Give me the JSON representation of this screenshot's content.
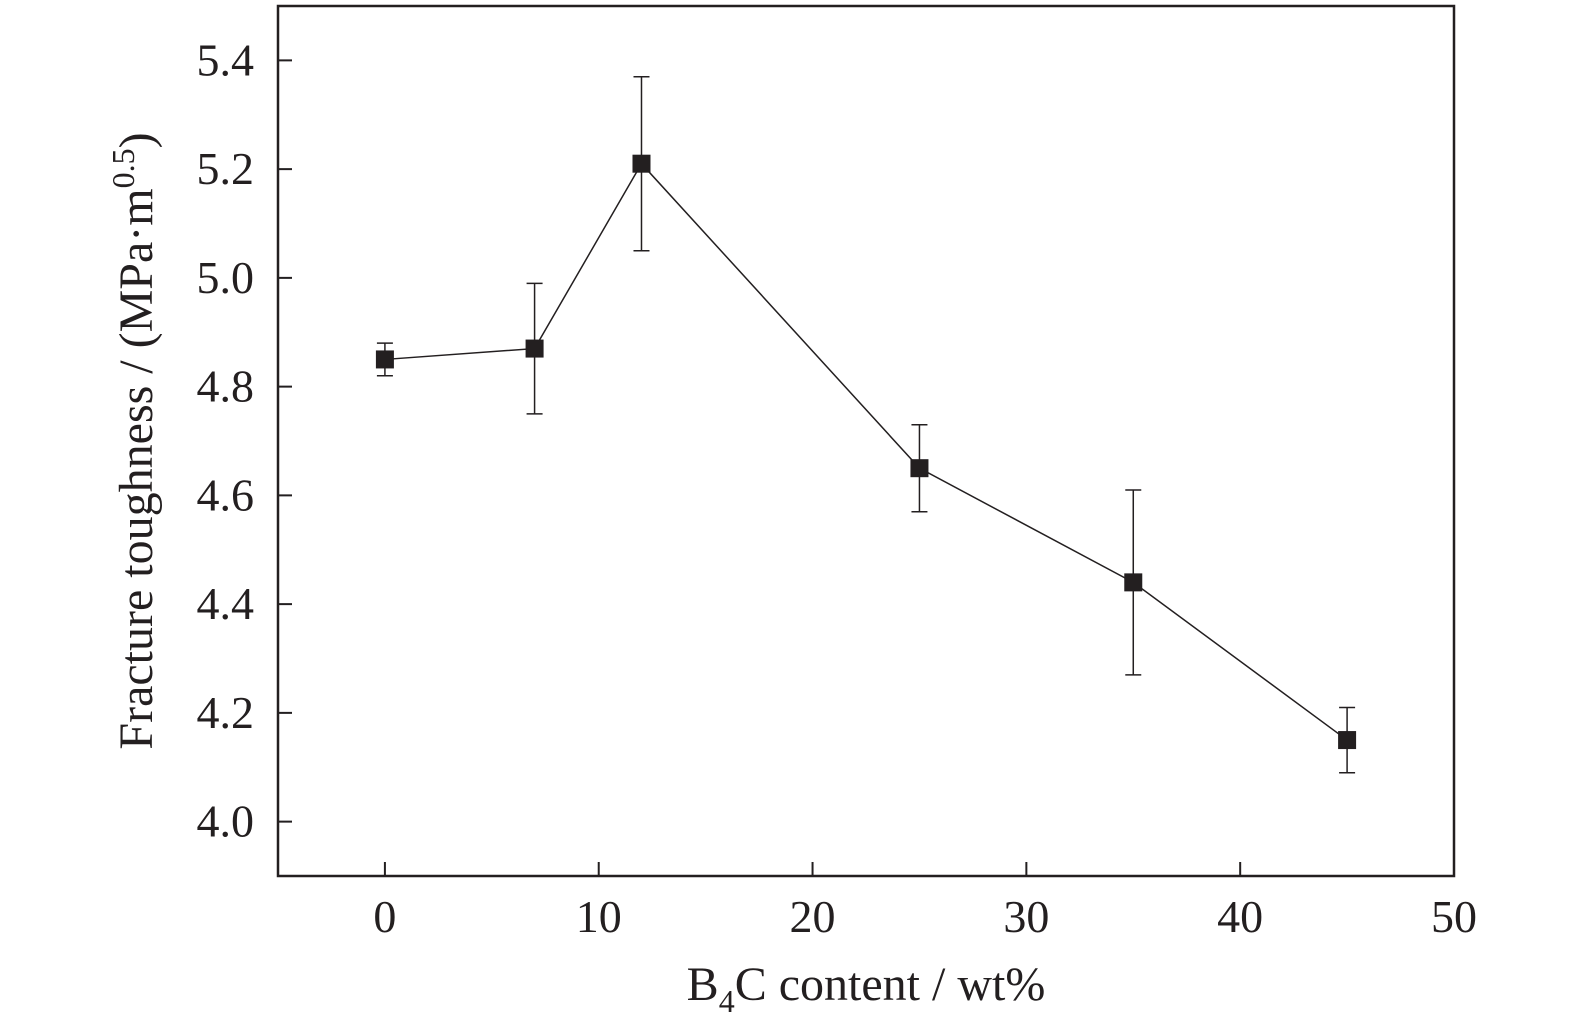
{
  "chart_data": {
    "type": "scatter",
    "x": [
      0,
      7,
      12,
      25,
      35,
      45
    ],
    "y": [
      4.85,
      4.87,
      5.21,
      4.65,
      4.44,
      4.15
    ],
    "error": [
      0.03,
      0.12,
      0.16,
      0.08,
      0.17,
      0.06
    ],
    "connected": true,
    "marker": "square",
    "xlim": [
      -5,
      50
    ],
    "ylim": [
      3.9,
      5.5
    ],
    "xticks": [
      0,
      10,
      20,
      30,
      40,
      50
    ],
    "yticks": [
      4.0,
      4.2,
      4.4,
      4.6,
      4.8,
      5.0,
      5.2,
      5.4
    ],
    "xtick_labels": [
      "0",
      "10",
      "20",
      "30",
      "40",
      "50"
    ],
    "ytick_labels": [
      "4.0",
      "4.2",
      "4.4",
      "4.6",
      "4.8",
      "5.0",
      "5.2",
      "5.4"
    ],
    "xlabel": {
      "pre": "B",
      "sub": "4",
      "post": "C content / wt%"
    },
    "ylabel": {
      "pre": "Fracture toughness / (MPa·m",
      "sup": "0.5",
      "post": ")"
    },
    "grid": false,
    "legend": "none",
    "colors": {
      "ink": "#231f20",
      "frame": "#231f20"
    }
  }
}
